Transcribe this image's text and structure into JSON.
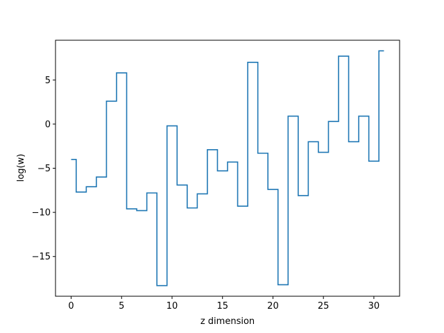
{
  "chart_data": {
    "type": "line",
    "drawstyle": "steps-mid",
    "title": "",
    "xlabel": "z dimension",
    "ylabel": "log(w)",
    "xlim": [
      -1.55,
      32.55
    ],
    "ylim": [
      -19.5,
      9.5
    ],
    "xticks": [
      0,
      5,
      10,
      15,
      20,
      25,
      30
    ],
    "yticks": [
      -15,
      -10,
      -5,
      0,
      5
    ],
    "ytick_labels": [
      "−15",
      "−10",
      "−5",
      "0",
      "5"
    ],
    "grid": false,
    "series": [
      {
        "color": "#1f77b4",
        "x": [
          0,
          1,
          2,
          3,
          4,
          5,
          6,
          7,
          8,
          9,
          10,
          11,
          12,
          13,
          14,
          15,
          16,
          17,
          18,
          19,
          20,
          21,
          22,
          23,
          24,
          25,
          26,
          27,
          28,
          29,
          30,
          31
        ],
        "y": [
          -4.0,
          -7.7,
          -7.1,
          -6.0,
          2.6,
          5.8,
          -9.6,
          -9.8,
          -7.8,
          -18.3,
          -0.2,
          -6.9,
          -9.5,
          -7.9,
          -2.9,
          -5.3,
          -4.3,
          -9.3,
          7.0,
          -3.3,
          -7.4,
          -18.2,
          0.9,
          -8.1,
          -2.0,
          -3.2,
          0.3,
          7.7,
          -2.0,
          0.9,
          -4.2,
          8.3
        ]
      }
    ]
  }
}
